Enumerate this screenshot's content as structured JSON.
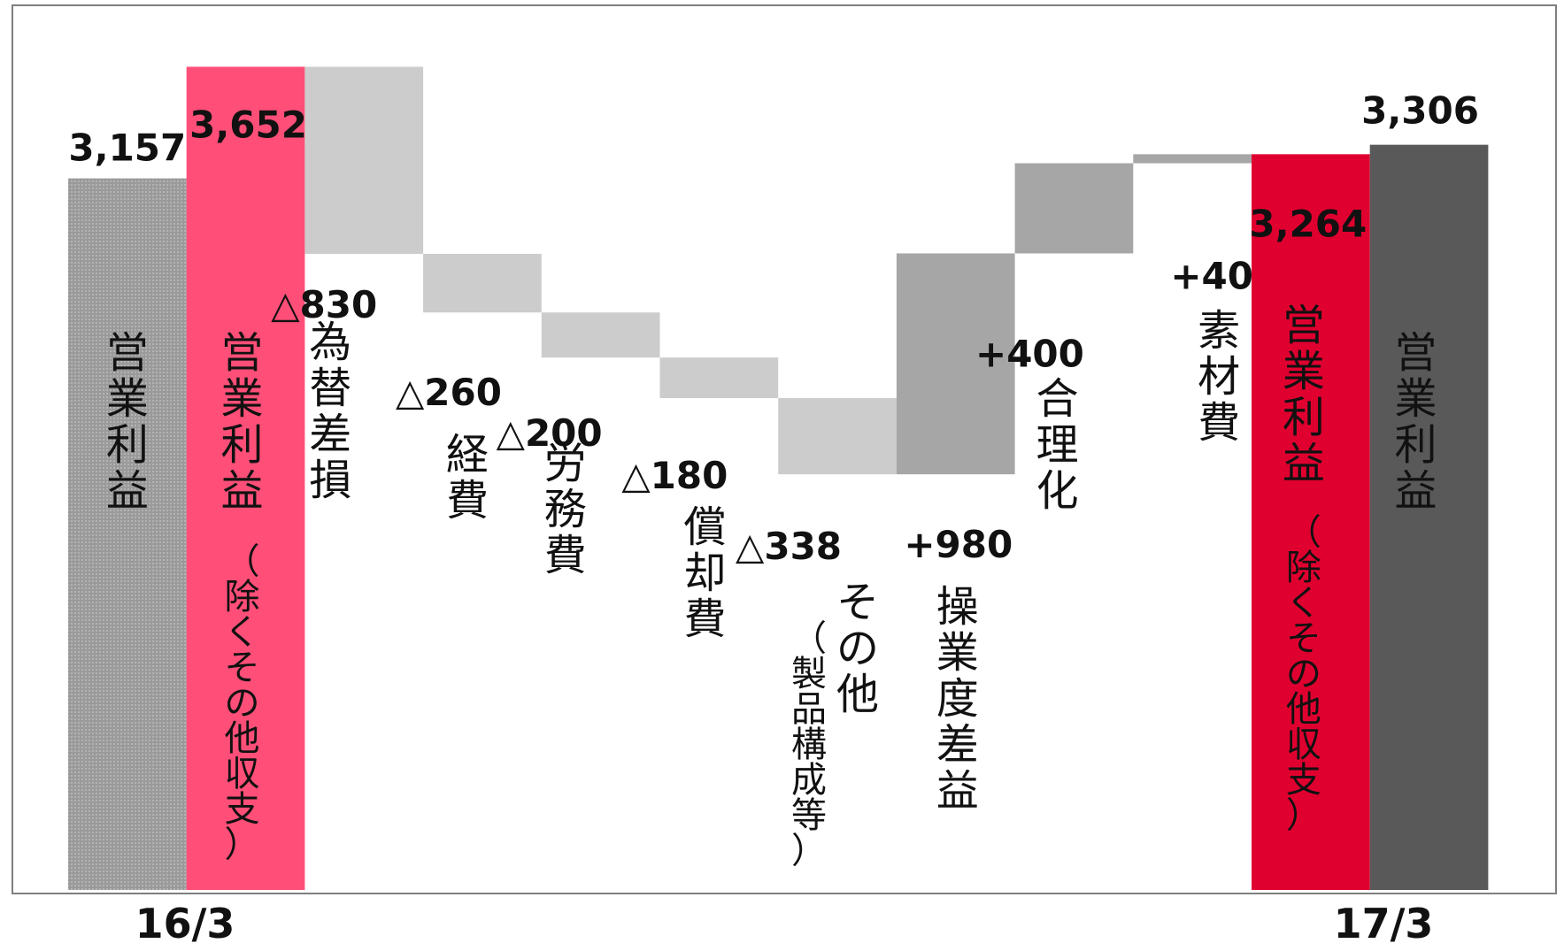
{
  "chart_data": {
    "type": "bar",
    "subtype": "waterfall",
    "categories": [
      "営業利益",
      "営業利益（除くその他収支）",
      "為替差損",
      "経費",
      "労務費",
      "償却費",
      "その他",
      "操業度差益",
      "合理化",
      "素材費",
      "営業利益（除くその他収支）",
      "営業利益"
    ],
    "values": [
      3157,
      3652,
      -830,
      -260,
      -200,
      -180,
      -338,
      980,
      400,
      40,
      3264,
      3306
    ],
    "value_labels": [
      "3,157",
      "3,652",
      "△830",
      "△260",
      "△200",
      "△180",
      "△338",
      "+980",
      "+400",
      "+40",
      "3,264",
      "3,306"
    ],
    "bars": [
      {
        "kind": "total",
        "value": 3157,
        "label": "3,157",
        "cat": "営業利益",
        "sub": "",
        "color": "#9a9a9a",
        "label_color": "#111111"
      },
      {
        "kind": "total",
        "value": 3652,
        "label": "3,652",
        "cat": "営業利益",
        "sub": "（除くその他収支）",
        "color": "#ff4f78",
        "label_color": "#ffffff"
      },
      {
        "kind": "delta",
        "value": -830,
        "label": "△830",
        "cat": "為替差損",
        "sub": "",
        "color": "#cccccc"
      },
      {
        "kind": "delta",
        "value": -260,
        "label": "△260",
        "cat": "経費",
        "sub": "",
        "color": "#cccccc"
      },
      {
        "kind": "delta",
        "value": -200,
        "label": "△200",
        "cat": "労務費",
        "sub": "",
        "color": "#cccccc"
      },
      {
        "kind": "delta",
        "value": -180,
        "label": "△180",
        "cat": "償却費",
        "sub": "",
        "color": "#cccccc"
      },
      {
        "kind": "delta",
        "value": -338,
        "label": "△338",
        "cat": "その他",
        "sub": "（製品構成等）",
        "color": "#cccccc"
      },
      {
        "kind": "delta",
        "value": 980,
        "label": "+980",
        "cat": "操業度差益",
        "sub": "",
        "color": "#a6a6a6"
      },
      {
        "kind": "delta",
        "value": 400,
        "label": "+400",
        "cat": "合理化",
        "sub": "",
        "color": "#a6a6a6"
      },
      {
        "kind": "delta",
        "value": 40,
        "label": "+40",
        "cat": "素材費",
        "sub": "",
        "color": "#a6a6a6"
      },
      {
        "kind": "total",
        "value": 3264,
        "label": "3,264",
        "cat": "営業利益",
        "sub": "（除くその他収支）",
        "color": "#e0002f",
        "label_color": "#ffffff"
      },
      {
        "kind": "total",
        "value": 3306,
        "label": "3,306",
        "cat": "営業利益",
        "sub": "",
        "color": "#595959",
        "label_color": "#111111"
      }
    ],
    "periods": [
      "16/3",
      "17/3"
    ],
    "title": "",
    "xlabel": "",
    "ylabel": "",
    "grid": false,
    "legend": "none"
  }
}
